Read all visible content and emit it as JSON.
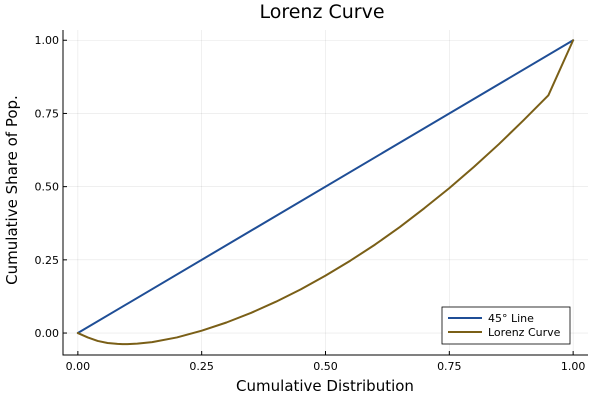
{
  "chart_data": {
    "type": "line",
    "title": "Lorenz Curve",
    "xlabel": "Cumulative Distribution",
    "ylabel": "Cumulative Share of Pop.",
    "xlim": [
      -0.03,
      1.03
    ],
    "ylim": [
      -0.075,
      1.035
    ],
    "xticks": [
      0,
      0.25,
      0.5,
      0.75,
      1.0
    ],
    "xtick_labels": [
      "0.00",
      "0.25",
      "0.50",
      "0.75",
      "1.00"
    ],
    "yticks": [
      0,
      0.25,
      0.5,
      0.75,
      1.0
    ],
    "ytick_labels": [
      "0.00",
      "0.25",
      "0.50",
      "0.75",
      "1.00"
    ],
    "grid": true,
    "legend_position": "bottom-right",
    "series": [
      {
        "name": "45° Line",
        "color": "#1f4e96",
        "x": [
          0,
          1
        ],
        "y": [
          0,
          1
        ]
      },
      {
        "name": "Lorenz Curve",
        "color": "#7a5f17",
        "x": [
          0,
          0.02,
          0.04,
          0.06,
          0.08,
          0.09,
          0.1,
          0.12,
          0.15,
          0.2,
          0.25,
          0.3,
          0.35,
          0.4,
          0.45,
          0.5,
          0.55,
          0.6,
          0.65,
          0.7,
          0.75,
          0.8,
          0.85,
          0.9,
          0.95,
          1.0
        ],
        "y": [
          0,
          -0.015,
          -0.027,
          -0.034,
          -0.037,
          -0.038,
          -0.038,
          -0.036,
          -0.031,
          -0.015,
          0.008,
          0.036,
          0.069,
          0.107,
          0.149,
          0.196,
          0.247,
          0.302,
          0.362,
          0.427,
          0.495,
          0.568,
          0.645,
          0.727,
          0.812,
          1.0
        ]
      }
    ]
  }
}
